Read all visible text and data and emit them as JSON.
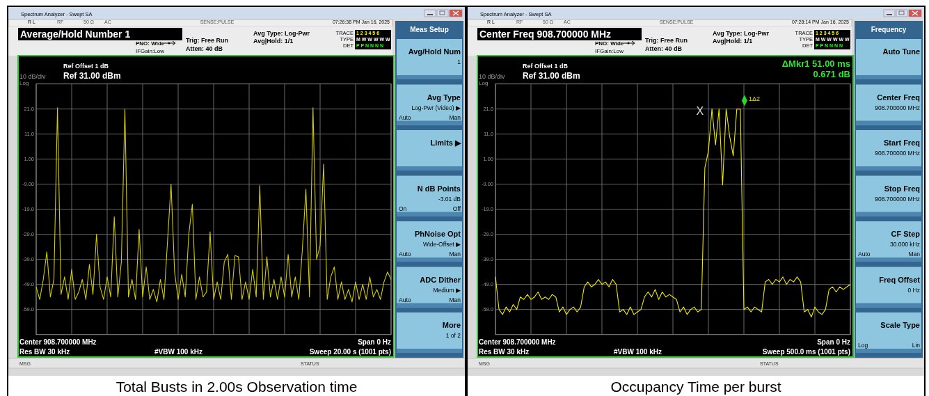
{
  "chart_data": [
    {
      "type": "line",
      "title": "Total Busts in 2.00s Observation time",
      "annotations": [
        "Spectrum Analyzer - Swept SA",
        "R L",
        "RF",
        "50 Ω",
        "AC",
        "SENSE:PULSE",
        "07:26:38 PM Jan 16, 2025",
        "Average/Hold Number 1",
        "PNO: Wide",
        "IFGain:Low",
        "Trig: Free Run",
        "Atten: 40 dB",
        "Avg Type: Log-Pwr",
        "Avg|Hold: 1/1",
        "TRACE",
        "1 2 3 4 5 6",
        "TYPE",
        "M W W W W W",
        "DET",
        "P P N N N N",
        "Ref Offset 1 dB",
        "Ref 31.00 dBm",
        "10 dB/div",
        "Log",
        "Center 908.700000 MHz",
        "Span 0 Hz",
        "Res BW 30 kHz",
        "#VBW 100 kHz",
        "Sweep  20.00 s (1001 pts)",
        "MSG",
        "STATUS",
        "Meas Setup",
        "Avg/Hold Num\n1",
        "Avg Type\nLog-Pwr (Video) ▶\nAuto\tMan",
        "Limits ▶",
        "N dB Points\n-3.01 dB\nOn\tOff",
        "PhNoise Opt\nWide-Offset ▶\nAuto\tMan",
        "ADC Dither\nMedium ▶\nAuto\tMan",
        "More\n1 of 2"
      ],
      "categories": [
        null,
        null,
        null,
        null,
        null,
        null,
        null,
        null,
        null,
        null,
        null,
        null,
        null,
        null,
        null,
        null,
        null,
        null,
        null,
        null,
        null,
        null,
        null,
        null,
        null,
        null,
        null,
        null,
        null,
        null,
        null,
        null,
        null,
        null,
        null,
        null,
        null,
        null,
        null,
        null,
        null,
        null,
        null,
        null,
        null,
        null,
        null,
        null,
        null,
        null,
        null,
        null,
        null,
        null,
        null,
        null,
        null,
        null,
        null,
        null,
        null,
        null,
        null,
        null,
        null,
        null,
        null,
        null,
        null,
        null,
        null,
        null,
        null,
        null,
        null,
        null,
        null,
        null,
        null,
        null,
        null,
        null,
        null,
        null,
        null,
        null,
        null,
        null,
        null,
        null,
        null,
        null,
        null,
        null,
        null,
        null,
        null,
        null,
        null,
        null,
        null
      ],
      "ylim": [
        -69,
        31
      ],
      "yticks": [
        {
          "value": 21,
          "label": "21.0"
        },
        {
          "value": 11,
          "label": "11.0"
        },
        {
          "value": 1,
          "label": "1.00"
        },
        {
          "value": -9,
          "label": "-9.00"
        },
        {
          "value": -19,
          "label": "-19.0"
        },
        {
          "value": -29,
          "label": "-29.0"
        },
        {
          "value": -39,
          "label": "-39.0"
        },
        {
          "value": -49,
          "label": "-49.0"
        },
        {
          "value": -59,
          "label": "-59.0"
        }
      ],
      "grid": true,
      "series": [
        {
          "color": "#d4cc00",
          "values": [
            -50,
            -55,
            -47,
            -36,
            -54,
            -47,
            21.5,
            -53,
            -46,
            -55,
            -43,
            -55,
            -52,
            -47,
            -55,
            -41,
            -53,
            -29,
            -50,
            -55,
            -46,
            -54,
            -22,
            -54,
            -40,
            21,
            -54,
            -47,
            -55,
            -27,
            -54,
            -42,
            -55,
            -51,
            -56,
            -47,
            -55,
            -32,
            -9,
            -44,
            -55,
            -45,
            -54,
            -29,
            -17,
            -55,
            -46,
            -54,
            -52,
            -28,
            -55,
            -48,
            -55,
            -40,
            -37,
            -55,
            -37.5,
            -38,
            -55,
            -48,
            -55,
            -43,
            -54,
            -9.5,
            -55,
            -38,
            -54,
            -47,
            -55,
            -46,
            -54,
            -37,
            -54,
            -46,
            -55,
            -35,
            -11,
            -54,
            21.5,
            -39,
            -33.5,
            -1,
            -55,
            -46,
            -42,
            -55,
            -48,
            -55,
            -51,
            -56,
            -48,
            -55,
            -49,
            -55,
            -46,
            -54,
            -51,
            -55,
            -48,
            -44,
            -47
          ]
        }
      ]
    },
    {
      "type": "line",
      "title": "Occupancy Time per burst",
      "subtitle": "ΔMkr1 51.00 ms\n0.671 dB",
      "annotations": [
        "Spectrum Analyzer - Swept SA",
        "R L",
        "RF",
        "50 Ω",
        "AC",
        "SENSE:PULSE",
        "07:28:14 PM Jan 16, 2025",
        "Center Freq 908.700000 MHz",
        "PNO: Wide",
        "IFGain:Low",
        "Trig: Free Run",
        "Atten: 40 dB",
        "Avg Type: Log-Pwr",
        "Avg|Hold: 1/1",
        "TRACE",
        "1 2 3 4 5 6",
        "TYPE",
        "M W W W W W",
        "DET",
        "P P N N N N",
        "Ref Offset 1 dB",
        "Ref 31.00 dBm",
        "10 dB/div",
        "Log",
        "Center 908.700000 MHz",
        "Span 0 Hz",
        "Res BW 30 kHz",
        "#VBW 100 kHz",
        "Sweep  500.0 ms (1001 pts)",
        "MSG",
        "STATUS",
        "Frequency",
        "Auto Tune",
        "Center Freq\n908.700000 MHz",
        "Start Freq\n908.700000 MHz",
        "Stop Freq\n908.700000 MHz",
        "CF Step\n30.000 kHz\nAuto\tMan",
        "Freq Offset\n0 Hz",
        "Scale Type\n\nLog\tLin",
        "X",
        "1Δ2"
      ],
      "categories": [
        null,
        null,
        null,
        null,
        null,
        null,
        null,
        null,
        null,
        null,
        null,
        null,
        null,
        null,
        null,
        null,
        null,
        null,
        null,
        null,
        null,
        null,
        null,
        null,
        null,
        null,
        null,
        null,
        null,
        null,
        null,
        null,
        null,
        null,
        null,
        null,
        null,
        null,
        null,
        null,
        null,
        null,
        null,
        null,
        null,
        null,
        null,
        null,
        null,
        null,
        null,
        null,
        null,
        null,
        null,
        null,
        null,
        null,
        null,
        null,
        null,
        null,
        null,
        null,
        null,
        null,
        null,
        null,
        null,
        null,
        null,
        null,
        null,
        null,
        null,
        null,
        null,
        null,
        null,
        null,
        null,
        null,
        null,
        null,
        null,
        null,
        null,
        null,
        null,
        null,
        null,
        null,
        null,
        null,
        null,
        null,
        null,
        null,
        null,
        null,
        null
      ],
      "ylim": [
        -69,
        31
      ],
      "yticks": [
        {
          "value": 21,
          "label": "21.0"
        },
        {
          "value": 11,
          "label": "11.0"
        },
        {
          "value": 1,
          "label": "1.00"
        },
        {
          "value": -9,
          "label": "-9.00"
        },
        {
          "value": -19,
          "label": "-19.0"
        },
        {
          "value": -29,
          "label": "-29.0"
        },
        {
          "value": -39,
          "label": "-39.0"
        },
        {
          "value": -49,
          "label": "-49.0"
        },
        {
          "value": -59,
          "label": "-59.0"
        }
      ],
      "grid": true,
      "series": [
        {
          "color": "#f0e800",
          "values": [
            -46,
            -59,
            -61,
            -58,
            -60,
            -57,
            -59,
            -54,
            -55,
            -53,
            -55,
            -54,
            -52,
            -55,
            -54,
            -55,
            -53,
            -54,
            -60,
            -58,
            -61,
            -59,
            -58,
            -60,
            -58,
            -50,
            -48,
            -50,
            -49,
            -47,
            -49,
            -48,
            -50,
            -47,
            -49,
            -60,
            -59,
            -61,
            -58,
            -61,
            -60,
            -59,
            -54,
            -52,
            -54,
            -51,
            -55,
            -52,
            -54,
            -53,
            -54,
            -55,
            -60,
            -58,
            -61,
            -59,
            -58,
            -60,
            -59,
            -2.5,
            4.2,
            21,
            6.7,
            21,
            -9.3,
            21,
            10,
            2.3,
            21,
            21,
            -59,
            -58,
            -60,
            -58,
            -59,
            -60,
            -48,
            -47,
            -49,
            -47,
            -48,
            -46,
            -49,
            -47,
            -48,
            -46,
            -48,
            -60,
            -59,
            -62,
            -58,
            -60,
            -61,
            -59,
            -51,
            -50,
            -52,
            -50,
            -51,
            -50,
            -49
          ]
        }
      ]
    }
  ]
}
